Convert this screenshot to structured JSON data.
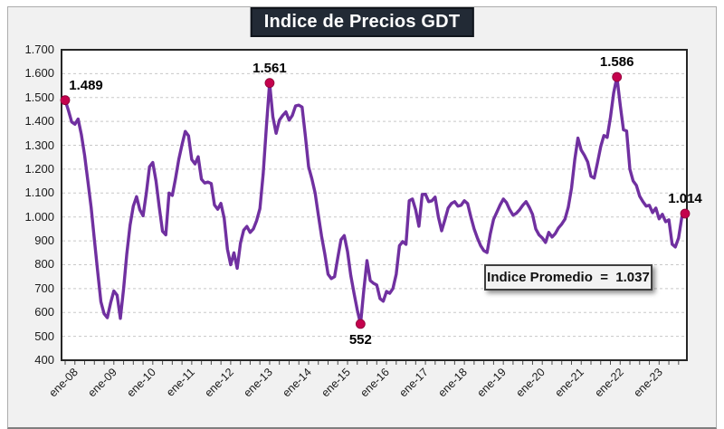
{
  "chart": {
    "title": "Indice de Precios GDT",
    "average_box_text": "Indice Promedio  =  1.037"
  },
  "colors": {
    "line": "#7030A0",
    "marker": "#C4024D",
    "title_bg": "#222A35",
    "plot_border": "#262626",
    "grid": "#C8C8C8",
    "frame_bg": "#F1F1F1"
  },
  "chart_data": {
    "type": "line",
    "title": "Indice de Precios GDT",
    "x_unit": "month",
    "x_start_label": "ene-08",
    "x_tick_labels": [
      "ene-08",
      "ene-09",
      "ene-10",
      "ene-11",
      "ene-12",
      "ene-13",
      "ene-14",
      "ene-15",
      "ene-16",
      "ene-17",
      "ene-18",
      "ene-19",
      "ene-20",
      "ene-21",
      "ene-22",
      "ene-23"
    ],
    "y_tick_labels": [
      "1.700",
      "1.600",
      "1.500",
      "1.400",
      "1.300",
      "1.200",
      "1.100",
      "1.000",
      "900",
      "800",
      "700",
      "600",
      "500",
      "400"
    ],
    "ylim": [
      400,
      1700
    ],
    "grid": "horizontal-dashed",
    "legend": "none",
    "values": [
      1489,
      1446,
      1398,
      1388,
      1410,
      1345,
      1258,
      1150,
      1040,
      905,
      772,
      645,
      595,
      578,
      640,
      690,
      672,
      575,
      700,
      845,
      965,
      1045,
      1085,
      1030,
      1005,
      1100,
      1210,
      1228,
      1150,
      1040,
      940,
      925,
      1100,
      1090,
      1160,
      1240,
      1302,
      1358,
      1340,
      1240,
      1222,
      1252,
      1158,
      1142,
      1146,
      1140,
      1050,
      1032,
      1057,
      995,
      865,
      800,
      850,
      785,
      890,
      945,
      960,
      935,
      950,
      985,
      1035,
      1180,
      1380,
      1561,
      1420,
      1350,
      1405,
      1425,
      1440,
      1405,
      1425,
      1465,
      1468,
      1460,
      1340,
      1210,
      1160,
      1100,
      1010,
      920,
      845,
      760,
      742,
      750,
      830,
      905,
      922,
      855,
      755,
      680,
      610,
      552,
      690,
      817,
      734,
      722,
      715,
      658,
      647,
      688,
      680,
      700,
      760,
      880,
      897,
      885,
      1068,
      1075,
      1030,
      961,
      1094,
      1095,
      1064,
      1068,
      1083,
      1000,
      942,
      988,
      1037,
      1056,
      1064,
      1045,
      1049,
      1068,
      1056,
      1000,
      950,
      912,
      880,
      859,
      851,
      930,
      990,
      1020,
      1050,
      1075,
      1060,
      1030,
      1007,
      1015,
      1030,
      1049,
      1064,
      1040,
      1011,
      950,
      925,
      912,
      893,
      935,
      916,
      930,
      954,
      970,
      991,
      1040,
      1120,
      1240,
      1330,
      1280,
      1258,
      1230,
      1170,
      1163,
      1227,
      1295,
      1341,
      1333,
      1416,
      1520,
      1586,
      1470,
      1365,
      1360,
      1200,
      1151,
      1132,
      1087,
      1064,
      1045,
      1049,
      1018,
      1037,
      992,
      1011,
      980,
      988,
      886,
      874,
      912,
      999,
      1014
    ],
    "annotations": [
      {
        "label": "1.489",
        "month_index": 0,
        "value": 1489,
        "position": "above-right"
      },
      {
        "label": "1.561",
        "month_index": 63,
        "value": 1561,
        "position": "above"
      },
      {
        "label": "552",
        "month_index": 91,
        "value": 552,
        "position": "below"
      },
      {
        "label": "1.586",
        "month_index": 170,
        "value": 1586,
        "position": "above"
      },
      {
        "label": "1.014",
        "month_index": 191,
        "value": 1014,
        "position": "above"
      }
    ],
    "average_value": 1037,
    "average_label": "Indice Promedio  =  1.037"
  }
}
